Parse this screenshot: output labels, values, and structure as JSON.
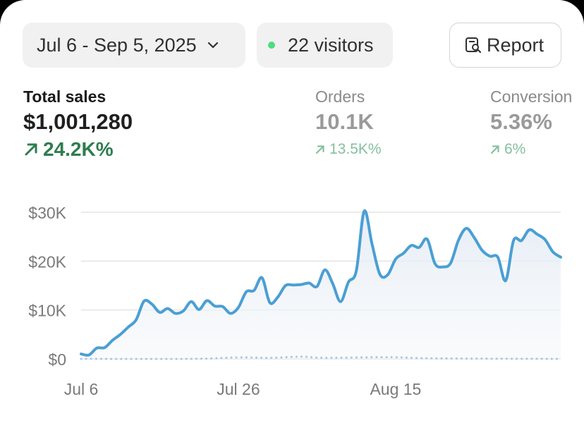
{
  "header": {
    "date_range": "Jul 6 - Sep 5, 2025",
    "visitors": "22 visitors",
    "report_label": "Report",
    "icons": [
      "chevron-down-icon",
      "status-dot-icon",
      "report-search-icon"
    ],
    "visitors_dot_color": "#4ade80"
  },
  "metrics": {
    "total_sales": {
      "label": "Total sales",
      "value": "$1,001,280",
      "delta": "24.2K%"
    },
    "orders": {
      "label": "Orders",
      "value": "10.1K",
      "delta": "13.5K%"
    },
    "conversion": {
      "label": "Conversion",
      "value": "5.36%",
      "delta": "6%"
    },
    "delta_color": "#2e7d4f",
    "muted_delta_color": "#86bf9e"
  },
  "chart_data": {
    "type": "line",
    "x_start": "2025-07-06",
    "x_end": "2025-09-05",
    "x_tick_labels": [
      {
        "label": "Jul 6",
        "date": "2025-07-06"
      },
      {
        "label": "Jul 26",
        "date": "2025-07-26"
      },
      {
        "label": "Aug 15",
        "date": "2025-08-15"
      }
    ],
    "y_tick_labels": [
      "$0",
      "$10K",
      "$20K",
      "$30K"
    ],
    "y_ticks": [
      0,
      10000,
      20000,
      30000
    ],
    "ylim": [
      0,
      30000
    ],
    "grid": true,
    "series": [
      {
        "color": "#4a9fd4",
        "style": "solid",
        "fill": "#eef2f7",
        "points": [
          [
            "2025-07-06",
            1000
          ],
          [
            "2025-07-07",
            800
          ],
          [
            "2025-07-08",
            2200
          ],
          [
            "2025-07-09",
            2300
          ],
          [
            "2025-07-10",
            3800
          ],
          [
            "2025-07-11",
            5000
          ],
          [
            "2025-07-12",
            6500
          ],
          [
            "2025-07-13",
            8000
          ],
          [
            "2025-07-14",
            11800
          ],
          [
            "2025-07-15",
            11200
          ],
          [
            "2025-07-16",
            9500
          ],
          [
            "2025-07-17",
            10300
          ],
          [
            "2025-07-18",
            9300
          ],
          [
            "2025-07-19",
            9800
          ],
          [
            "2025-07-20",
            11700
          ],
          [
            "2025-07-21",
            10100
          ],
          [
            "2025-07-22",
            11900
          ],
          [
            "2025-07-23",
            10800
          ],
          [
            "2025-07-24",
            10700
          ],
          [
            "2025-07-25",
            9300
          ],
          [
            "2025-07-26",
            10500
          ],
          [
            "2025-07-27",
            13700
          ],
          [
            "2025-07-28",
            14000
          ],
          [
            "2025-07-29",
            16600
          ],
          [
            "2025-07-30",
            11500
          ],
          [
            "2025-07-31",
            12600
          ],
          [
            "2025-08-01",
            15000
          ],
          [
            "2025-08-02",
            15100
          ],
          [
            "2025-08-03",
            15200
          ],
          [
            "2025-08-04",
            15500
          ],
          [
            "2025-08-05",
            14800
          ],
          [
            "2025-08-06",
            18200
          ],
          [
            "2025-08-07",
            15400
          ],
          [
            "2025-08-08",
            11700
          ],
          [
            "2025-08-09",
            15700
          ],
          [
            "2025-08-10",
            18000
          ],
          [
            "2025-08-11",
            30200
          ],
          [
            "2025-08-12",
            23500
          ],
          [
            "2025-08-13",
            17300
          ],
          [
            "2025-08-14",
            17200
          ],
          [
            "2025-08-15",
            20400
          ],
          [
            "2025-08-16",
            21600
          ],
          [
            "2025-08-17",
            23200
          ],
          [
            "2025-08-18",
            22800
          ],
          [
            "2025-08-19",
            24500
          ],
          [
            "2025-08-20",
            19500
          ],
          [
            "2025-08-21",
            18800
          ],
          [
            "2025-08-22",
            19600
          ],
          [
            "2025-08-23",
            24300
          ],
          [
            "2025-08-24",
            26700
          ],
          [
            "2025-08-25",
            24800
          ],
          [
            "2025-08-26",
            22200
          ],
          [
            "2025-08-27",
            21000
          ],
          [
            "2025-08-28",
            20800
          ],
          [
            "2025-08-29",
            16000
          ],
          [
            "2025-08-30",
            24200
          ],
          [
            "2025-08-31",
            24200
          ],
          [
            "2025-09-01",
            26400
          ],
          [
            "2025-09-02",
            25500
          ],
          [
            "2025-09-03",
            24400
          ],
          [
            "2025-09-04",
            21900
          ],
          [
            "2025-09-05",
            20800
          ]
        ]
      },
      {
        "color": "#a9c6e2",
        "style": "dotted",
        "points": [
          [
            "2025-07-06",
            0
          ],
          [
            "2025-07-20",
            0
          ],
          [
            "2025-07-26",
            300
          ],
          [
            "2025-07-30",
            200
          ],
          [
            "2025-08-03",
            450
          ],
          [
            "2025-08-06",
            200
          ],
          [
            "2025-08-14",
            350
          ],
          [
            "2025-08-20",
            100
          ],
          [
            "2025-09-05",
            0
          ]
        ]
      }
    ]
  }
}
